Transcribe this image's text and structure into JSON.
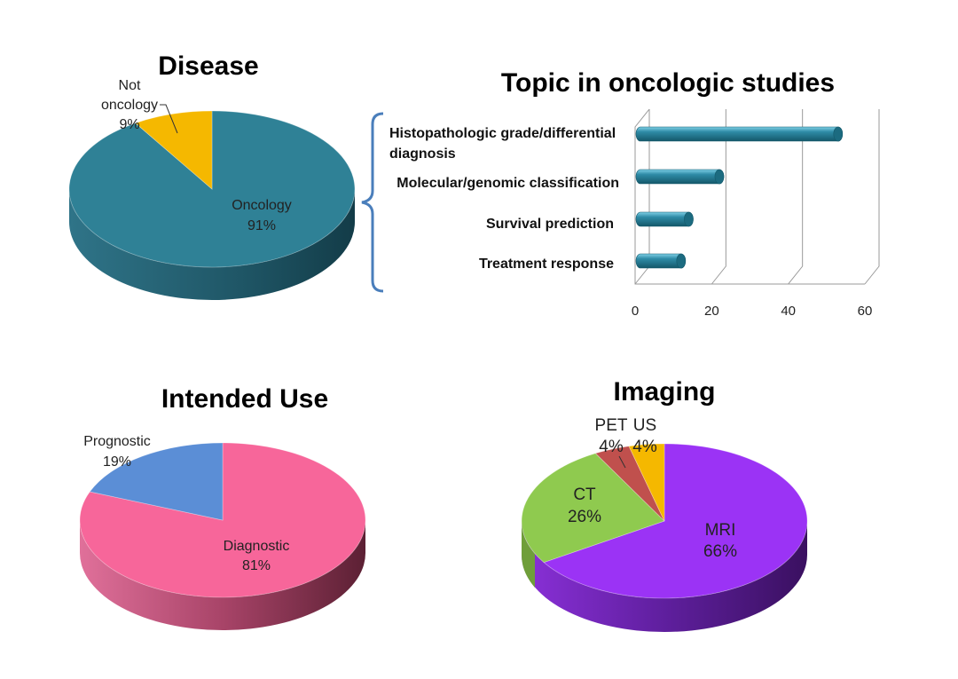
{
  "colors": {
    "oncology": "#2f8196",
    "not_oncology": "#f5b800",
    "diagnostic": "#f7669a",
    "prognostic": "#5b8ed6",
    "mri": "#9b33f5",
    "ct": "#8fca4f",
    "pet": "#c0504d",
    "us": "#f5b800",
    "bar": "#2e8ba6"
  },
  "chart_data": [
    {
      "id": "disease",
      "type": "pie",
      "title": "Disease",
      "slices": [
        {
          "label": "Oncology",
          "pct_label": "91%",
          "value": 91
        },
        {
          "label": "Not oncology",
          "pct_label": "9%",
          "value": 9
        }
      ]
    },
    {
      "id": "topic",
      "type": "bar",
      "orientation": "horizontal",
      "title": "Topic in oncologic studies",
      "categories": [
        "Histopathologic grade/differential diagnosis",
        "Molecular/genomic classification",
        "Survival prediction",
        "Treatment response"
      ],
      "values": [
        53,
        22,
        14,
        12
      ],
      "xlim": [
        0,
        60
      ],
      "xticks": [
        "0",
        "20",
        "40",
        "60"
      ],
      "grid": true
    },
    {
      "id": "intended_use",
      "type": "pie",
      "title": "Intended Use",
      "slices": [
        {
          "label": "Diagnostic",
          "pct_label": "81%",
          "value": 81
        },
        {
          "label": "Prognostic",
          "pct_label": "19%",
          "value": 19
        }
      ]
    },
    {
      "id": "imaging",
      "type": "pie",
      "title": "Imaging",
      "slices": [
        {
          "label": "MRI",
          "pct_label": "66%",
          "value": 66
        },
        {
          "label": "CT",
          "pct_label": "26%",
          "value": 26
        },
        {
          "label": "PET",
          "pct_label": "4%",
          "value": 4
        },
        {
          "label": "US",
          "pct_label": "4%",
          "value": 4
        }
      ]
    }
  ],
  "labels": {
    "not_oncology_line1": "Not",
    "not_oncology_line2": "oncology",
    "topic_cat1_line1": "Histopathologic grade/differential",
    "topic_cat1_line2": "diagnosis"
  }
}
